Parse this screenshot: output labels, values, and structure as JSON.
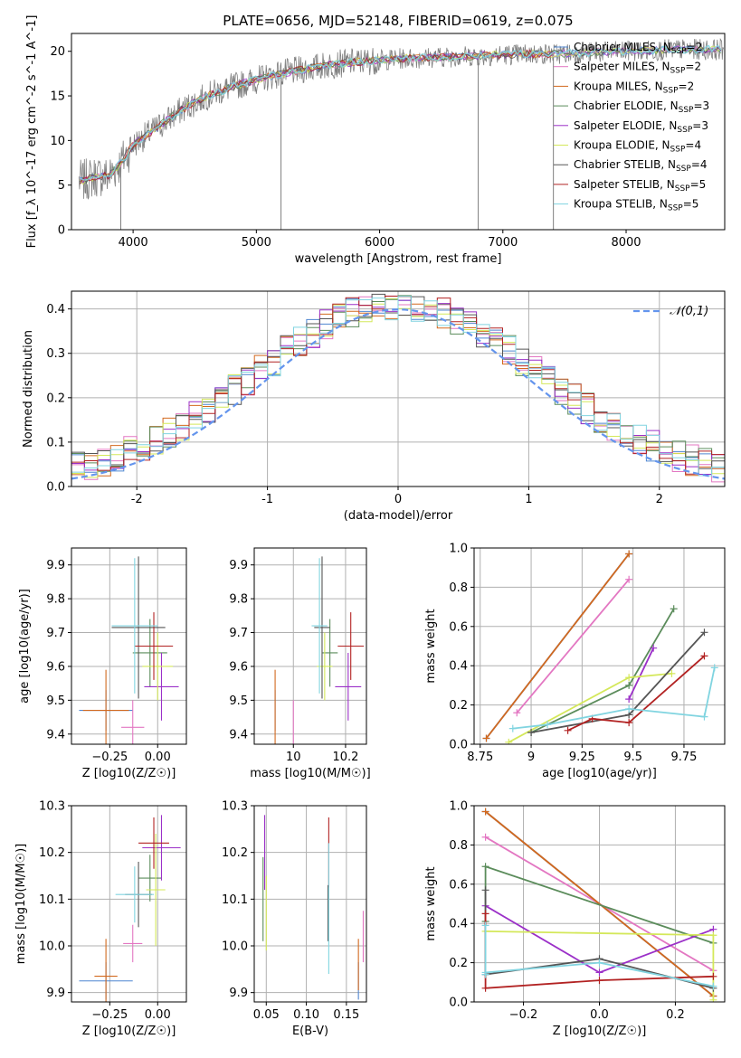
{
  "figure": {
    "title": "PLATE=0656, MJD=52148, FIBERID=0619, z=0.075"
  },
  "colors": {
    "data_gray": "#808080",
    "grid": "#b0b0b0",
    "normal_dashed": "#6495ed"
  },
  "models": [
    {
      "name": "Chabrier MILES",
      "nssp": "2",
      "color": "#4f86d1"
    },
    {
      "name": "Salpeter MILES",
      "nssp": "2",
      "color": "#e377c2"
    },
    {
      "name": "Kroupa MILES",
      "nssp": "2",
      "color": "#d2691e"
    },
    {
      "name": "Chabrier ELODIE",
      "nssp": "3",
      "color": "#5b8c5b"
    },
    {
      "name": "Salpeter ELODIE",
      "nssp": "3",
      "color": "#9b30c8"
    },
    {
      "name": "Kroupa ELODIE",
      "nssp": "4",
      "color": "#d4e85a"
    },
    {
      "name": "Chabrier STELIB",
      "nssp": "4",
      "color": "#555555"
    },
    {
      "name": "Salpeter STELIB",
      "nssp": "5",
      "color": "#b22222"
    },
    {
      "name": "Kroupa STELIB",
      "nssp": "5",
      "color": "#80d4e0"
    }
  ],
  "chart_data": [
    {
      "id": "spectrum",
      "type": "line",
      "title": "PLATE=0656, MJD=52148, FIBERID=0619, z=0.075",
      "xlabel": "wavelength [Angstrom, rest frame]",
      "ylabel": "Flux [f_λ 10^-17 erg cm^-2 s^-1 A^-1]",
      "xlim": [
        3500,
        8800
      ],
      "ylim": [
        0,
        22
      ],
      "xticks": [
        4000,
        5000,
        6000,
        7000,
        8000
      ],
      "yticks": [
        0,
        5,
        10,
        15,
        20
      ],
      "grid": false,
      "legend": "right",
      "continuum": {
        "x": [
          3600,
          3700,
          3800,
          3900,
          4000,
          4100,
          4200,
          4400,
          4600,
          4800,
          5000,
          5200,
          5400,
          5600,
          5800,
          6000,
          6200,
          6400,
          6600,
          6800,
          7000,
          7200,
          7400,
          7600,
          7800,
          8000,
          8200,
          8400,
          8600
        ],
        "y": [
          5.5,
          6.0,
          6.0,
          7.5,
          9.5,
          10.5,
          11.5,
          13.5,
          15.0,
          16.0,
          16.8,
          17.5,
          18.0,
          18.5,
          18.8,
          19.0,
          19.2,
          19.3,
          19.4,
          19.5,
          19.6,
          19.7,
          19.7,
          19.8,
          19.9,
          20.0,
          20.1,
          20.2,
          20.2
        ]
      }
    },
    {
      "id": "residuals",
      "type": "line",
      "xlabel": "(data-model)/error",
      "ylabel": "Normed distribution",
      "xlim": [
        -2.5,
        2.5
      ],
      "ylim": [
        0,
        0.44
      ],
      "xticks": [
        -2,
        -1,
        0,
        1,
        2
      ],
      "yticks": [
        0.0,
        0.1,
        0.2,
        0.3,
        0.4
      ],
      "grid": true,
      "legend": "top-right",
      "legend_label": "𝒩(0,1)",
      "reference": {
        "name": "𝒩(0,1)",
        "mean": 0,
        "sigma": 1
      }
    },
    {
      "id": "age_vs_Z",
      "type": "scatter",
      "xlabel": "Z [log10(Z/Z☉)]",
      "ylabel": "age  [log10(age/yr)]",
      "xlim": [
        -0.45,
        0.15
      ],
      "ylim": [
        9.37,
        9.95
      ],
      "xticks": [
        -0.25,
        0.0
      ],
      "xtick_labels": [
        "−0.25",
        "0.00"
      ],
      "yticks": [
        9.4,
        9.5,
        9.6,
        9.7,
        9.8,
        9.9
      ],
      "grid": true,
      "points": [
        {
          "model": 0,
          "x": -0.27,
          "y": 9.47,
          "xerr": 0.14,
          "yerr": 0.06
        },
        {
          "model": 1,
          "x": -0.13,
          "y": 9.42,
          "xerr": 0.06,
          "yerr": 0.08
        },
        {
          "model": 2,
          "x": -0.27,
          "y": 9.47,
          "xerr": 0.12,
          "yerr": 0.12
        },
        {
          "model": 3,
          "x": -0.04,
          "y": 9.64,
          "xerr": 0.09,
          "yerr": 0.1
        },
        {
          "model": 4,
          "x": 0.02,
          "y": 9.54,
          "xerr": 0.09,
          "yerr": 0.1
        },
        {
          "model": 5,
          "x": 0.0,
          "y": 9.6,
          "xerr": 0.08,
          "yerr": 0.1
        },
        {
          "model": 6,
          "x": -0.1,
          "y": 9.715,
          "xerr": 0.14,
          "yerr": 0.21
        },
        {
          "model": 7,
          "x": -0.02,
          "y": 9.66,
          "xerr": 0.1,
          "yerr": 0.1
        },
        {
          "model": 8,
          "x": -0.12,
          "y": 9.72,
          "xerr": 0.12,
          "yerr": 0.2
        }
      ]
    },
    {
      "id": "age_vs_mass",
      "type": "scatter",
      "xlabel": "mass [log10(M/M☉)]",
      "ylabel": "",
      "xlim": [
        9.85,
        10.28
      ],
      "ylim": [
        9.37,
        9.95
      ],
      "xticks": [
        10.0,
        10.2
      ],
      "yticks": [
        9.4,
        9.5,
        9.6,
        9.7,
        9.8,
        9.9
      ],
      "grid": true,
      "points": [
        {
          "model": 0,
          "x": 9.93,
          "y": 9.47,
          "xerr": 0.0,
          "yerr": 0.06
        },
        {
          "model": 1,
          "x": 10.0,
          "y": 9.42,
          "xerr": 0.0,
          "yerr": 0.08
        },
        {
          "model": 2,
          "x": 9.93,
          "y": 9.47,
          "xerr": 0.0,
          "yerr": 0.12
        },
        {
          "model": 3,
          "x": 10.14,
          "y": 9.64,
          "xerr": 0.03,
          "yerr": 0.1
        },
        {
          "model": 4,
          "x": 10.21,
          "y": 9.54,
          "xerr": 0.05,
          "yerr": 0.1
        },
        {
          "model": 5,
          "x": 10.12,
          "y": 9.6,
          "xerr": 0.03,
          "yerr": 0.1
        },
        {
          "model": 6,
          "x": 10.11,
          "y": 9.715,
          "xerr": 0.03,
          "yerr": 0.21
        },
        {
          "model": 7,
          "x": 10.22,
          "y": 9.66,
          "xerr": 0.05,
          "yerr": 0.1
        },
        {
          "model": 8,
          "x": 10.1,
          "y": 9.72,
          "xerr": 0.03,
          "yerr": 0.2
        }
      ]
    },
    {
      "id": "mass_weight_vs_age",
      "type": "line",
      "xlabel": "age  [log10(age/yr)]",
      "ylabel": "mass weight",
      "xlim": [
        8.72,
        9.95
      ],
      "ylim": [
        0,
        1.0
      ],
      "xticks": [
        8.75,
        9.0,
        9.25,
        9.5,
        9.75
      ],
      "yticks": [
        0.0,
        0.2,
        0.4,
        0.6,
        0.8,
        1.0
      ],
      "grid": true,
      "series": [
        {
          "model": 0,
          "x": [
            8.78,
            9.48
          ],
          "y": [
            0.03,
            0.97
          ]
        },
        {
          "model": 1,
          "x": [
            8.93,
            9.48
          ],
          "y": [
            0.16,
            0.84
          ]
        },
        {
          "model": 2,
          "x": [
            8.78,
            9.48
          ],
          "y": [
            0.03,
            0.97
          ]
        },
        {
          "model": 3,
          "x": [
            9.0,
            9.48,
            9.7
          ],
          "y": [
            0.06,
            0.3,
            0.69
          ]
        },
        {
          "model": 4,
          "x": [
            9.48,
            9.6
          ],
          "y": [
            0.23,
            0.49
          ]
        },
        {
          "model": 5,
          "x": [
            8.89,
            9.48,
            9.69
          ],
          "y": [
            0.01,
            0.34,
            0.36
          ]
        },
        {
          "model": 6,
          "x": [
            9.0,
            9.48,
            9.85
          ],
          "y": [
            0.06,
            0.15,
            0.57
          ]
        },
        {
          "model": 7,
          "x": [
            9.18,
            9.3,
            9.48,
            9.85
          ],
          "y": [
            0.07,
            0.13,
            0.11,
            0.45
          ]
        },
        {
          "model": 8,
          "x": [
            8.91,
            9.08,
            9.48,
            9.85,
            9.9
          ],
          "y": [
            0.08,
            0.1,
            0.18,
            0.14,
            0.39
          ]
        }
      ]
    },
    {
      "id": "mass_vs_Z",
      "type": "scatter",
      "xlabel": "Z [log10(Z/Z☉)]",
      "ylabel": "mass [log10(M/M☉)]",
      "xlim": [
        -0.45,
        0.15
      ],
      "ylim": [
        9.88,
        10.3
      ],
      "xticks": [
        -0.25,
        0.0
      ],
      "xtick_labels": [
        "−0.25",
        "0.00"
      ],
      "yticks": [
        9.9,
        10.0,
        10.1,
        10.2,
        10.3
      ],
      "grid": true,
      "points": [
        {
          "model": 0,
          "x": -0.27,
          "y": 9.925,
          "xerr": 0.14,
          "yerr": 0.04
        },
        {
          "model": 1,
          "x": -0.13,
          "y": 10.005,
          "xerr": 0.05,
          "yerr": 0.04
        },
        {
          "model": 2,
          "x": -0.27,
          "y": 9.935,
          "xerr": 0.06,
          "yerr": 0.08
        },
        {
          "model": 3,
          "x": -0.04,
          "y": 10.145,
          "xerr": 0.06,
          "yerr": 0.05
        },
        {
          "model": 4,
          "x": 0.02,
          "y": 10.21,
          "xerr": 0.1,
          "yerr": 0.07
        },
        {
          "model": 5,
          "x": -0.01,
          "y": 10.12,
          "xerr": 0.05,
          "yerr": 0.12
        },
        {
          "model": 6,
          "x": -0.1,
          "y": 10.11,
          "xerr": 0.07,
          "yerr": 0.07
        },
        {
          "model": 7,
          "x": -0.02,
          "y": 10.22,
          "xerr": 0.08,
          "yerr": 0.055
        },
        {
          "model": 8,
          "x": -0.12,
          "y": 10.11,
          "xerr": 0.1,
          "yerr": 0.06
        }
      ]
    },
    {
      "id": "mass_vs_EBV",
      "type": "scatter",
      "xlabel": "E(B-V)",
      "ylabel": "",
      "xlim": [
        0.035,
        0.175
      ],
      "ylim": [
        9.88,
        10.3
      ],
      "xticks": [
        0.05,
        0.1,
        0.15
      ],
      "xtick_labels": [
        "0.05",
        "0.10",
        "0.15"
      ],
      "yticks": [
        9.9,
        10.0,
        10.1,
        10.2,
        10.3
      ],
      "grid": true,
      "points": [
        {
          "model": 0,
          "x": 0.165,
          "y": 9.925,
          "xerr": 0,
          "yerr": 0.04
        },
        {
          "model": 1,
          "x": 0.171,
          "y": 10.02,
          "xerr": 0,
          "yerr": 0.055
        },
        {
          "model": 2,
          "x": 0.165,
          "y": 9.96,
          "xerr": 0,
          "yerr": 0.055
        },
        {
          "model": 3,
          "x": 0.046,
          "y": 10.1,
          "xerr": 0,
          "yerr": 0.09
        },
        {
          "model": 4,
          "x": 0.048,
          "y": 10.2,
          "xerr": 0,
          "yerr": 0.08
        },
        {
          "model": 5,
          "x": 0.05,
          "y": 10.07,
          "xerr": 0,
          "yerr": 0.08
        },
        {
          "model": 6,
          "x": 0.127,
          "y": 10.07,
          "xerr": 0,
          "yerr": 0.06
        },
        {
          "model": 7,
          "x": 0.128,
          "y": 10.2,
          "xerr": 0,
          "yerr": 0.075
        },
        {
          "model": 8,
          "x": 0.128,
          "y": 10.08,
          "xerr": 0,
          "yerr": 0.14
        }
      ]
    },
    {
      "id": "mass_weight_vs_Z",
      "type": "line",
      "xlabel": "Z [log10(Z/Z☉)]",
      "ylabel": "mass weight",
      "xlim": [
        -0.33,
        0.33
      ],
      "ylim": [
        0,
        1.0
      ],
      "xticks": [
        -0.2,
        0.0,
        0.2
      ],
      "xtick_labels": [
        "−0.2",
        "0.0",
        "0.2"
      ],
      "yticks": [
        0.0,
        0.2,
        0.4,
        0.6,
        0.8,
        1.0
      ],
      "grid": true,
      "series": [
        {
          "model": 0,
          "x": [
            -0.3,
            0.3
          ],
          "y": [
            0.97,
            0.03
          ]
        },
        {
          "model": 1,
          "x": [
            -0.3,
            0.3
          ],
          "y": [
            0.84,
            0.16
          ]
        },
        {
          "model": 2,
          "x": [
            -0.3,
            0.3
          ],
          "y": [
            0.97,
            0.03
          ]
        },
        {
          "model": 3,
          "x": [
            -0.3,
            -0.3,
            0.3
          ],
          "y": [
            0.41,
            0.69,
            0.3
          ]
        },
        {
          "model": 4,
          "x": [
            -0.3,
            0.0,
            0.3
          ],
          "y": [
            0.49,
            0.15,
            0.37
          ]
        },
        {
          "model": 5,
          "x": [
            -0.3,
            0.3,
            0.3
          ],
          "y": [
            0.36,
            0.34,
            0.01
          ]
        },
        {
          "model": 6,
          "x": [
            -0.3,
            -0.3,
            0.0,
            0.3
          ],
          "y": [
            0.57,
            0.14,
            0.22,
            0.07
          ]
        },
        {
          "model": 7,
          "x": [
            -0.3,
            -0.3,
            0.0,
            0.3
          ],
          "y": [
            0.45,
            0.07,
            0.11,
            0.13
          ]
        },
        {
          "model": 8,
          "x": [
            -0.3,
            -0.3,
            -0.3,
            0.0,
            0.3
          ],
          "y": [
            0.39,
            0.14,
            0.15,
            0.2,
            0.08
          ]
        }
      ]
    }
  ]
}
